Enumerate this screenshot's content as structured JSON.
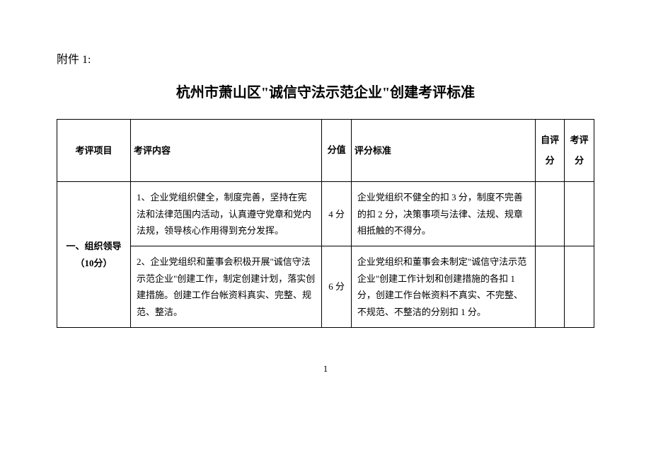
{
  "attachment_label": "附件 1:",
  "title": "杭州市萧山区\"诚信守法示范企业\"创建考评标准",
  "headers": {
    "project": "考评项目",
    "content": "考评内容",
    "score": "分值",
    "criteria": "评分标准",
    "self_score": "自评分",
    "eval_score": "考评分"
  },
  "section1": {
    "project_name": "一、组织领导（10分）",
    "rows": [
      {
        "content": "1、企业党组织健全，制度完善，坚持在宪法和法律范围内活动，认真遵守党章和党内法规，领导核心作用得到充分发挥。",
        "score": "4 分",
        "criteria": "企业党组织不健全的扣 3 分，制度不完善的扣 2 分，决策事项与法律、法规、规章相抵触的不得分。"
      },
      {
        "content": "2、企业党组织和董事会积极开展\"诚信守法示范企业\"创建工作，制定创建计划，落实创建措施。创建工作台帐资料真实、完整、规范、整洁。",
        "score": "6 分",
        "criteria": "企业党组织和董事会未制定\"诚信守法示范企业\"创建工作计划和创建措施的各扣 1 分，创建工作台帐资料不真实、不完整、不规范、不整洁的分别扣 1 分。"
      }
    ]
  },
  "page_number": "1"
}
